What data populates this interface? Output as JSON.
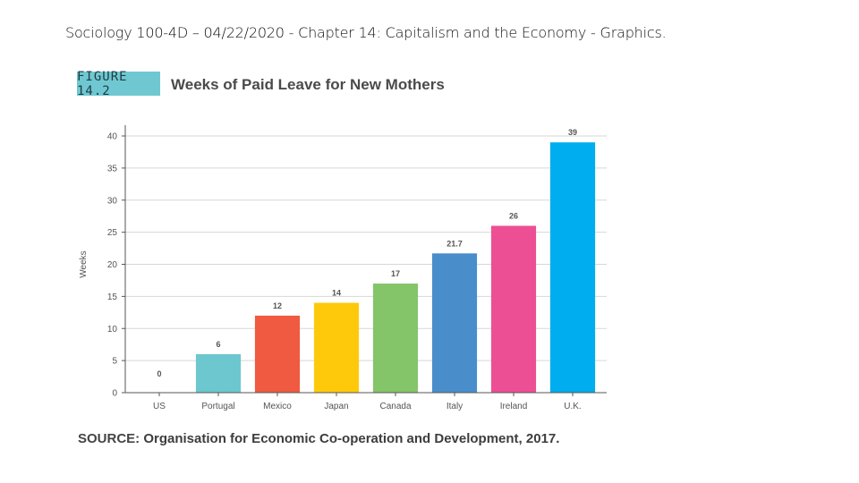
{
  "slide": {
    "title": "Sociology 100-4D – 04/22/2020 - Chapter 14: Capitalism and the Economy - Graphics."
  },
  "figure": {
    "tag": "FIGURE 14.2",
    "tag_color": "#6fc8d1"
  },
  "source": {
    "label": "SOURCE:",
    "text": "Organisation for Economic Co-operation and Development, 2017."
  },
  "chart_data": {
    "type": "bar",
    "title": "Weeks of Paid Leave for New Mothers",
    "xlabel": "",
    "ylabel": "Weeks",
    "ylim": [
      0,
      40
    ],
    "yticks": [
      0,
      5,
      10,
      15,
      20,
      25,
      30,
      35,
      40
    ],
    "grid": true,
    "categories": [
      "US",
      "Portugal",
      "Mexico",
      "Japan",
      "Canada",
      "Italy",
      "Ireland",
      "U.K."
    ],
    "values": [
      0,
      6,
      12,
      14,
      17,
      21.7,
      26,
      39
    ],
    "value_labels": [
      "0",
      "6",
      "12",
      "14",
      "17",
      "21.7",
      "26",
      "39"
    ],
    "colors": [
      "#9e9e9e",
      "#6cc7cf",
      "#ef5a40",
      "#fec90b",
      "#84c56a",
      "#4a8dcb",
      "#ec4f93",
      "#00adee"
    ]
  }
}
